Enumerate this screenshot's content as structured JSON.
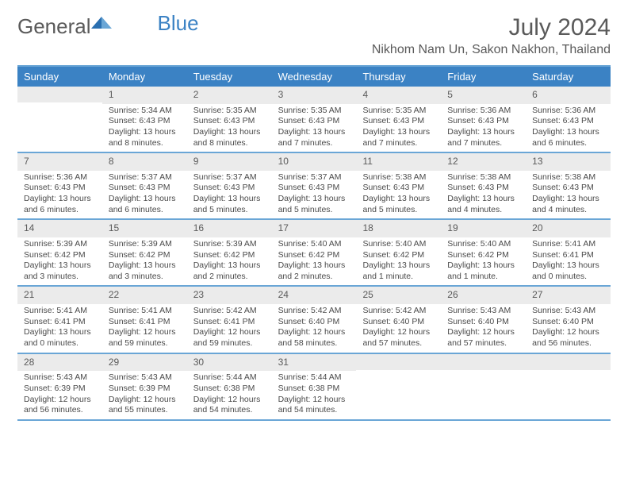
{
  "brand": {
    "word1": "General",
    "word2": "Blue"
  },
  "month_title": "July 2024",
  "location": "Nikhom Nam Un, Sakon Nakhon, Thailand",
  "colors": {
    "header_bg": "#3b82c4",
    "header_rule": "#6aa6d6",
    "daynum_bg": "#ebebeb",
    "text": "#4a4a4a"
  },
  "weekdays": [
    "Sunday",
    "Monday",
    "Tuesday",
    "Wednesday",
    "Thursday",
    "Friday",
    "Saturday"
  ],
  "weeks": [
    [
      {},
      {
        "n": "1",
        "sr": "5:34 AM",
        "ss": "6:43 PM",
        "dl": "13 hours and 8 minutes."
      },
      {
        "n": "2",
        "sr": "5:35 AM",
        "ss": "6:43 PM",
        "dl": "13 hours and 8 minutes."
      },
      {
        "n": "3",
        "sr": "5:35 AM",
        "ss": "6:43 PM",
        "dl": "13 hours and 7 minutes."
      },
      {
        "n": "4",
        "sr": "5:35 AM",
        "ss": "6:43 PM",
        "dl": "13 hours and 7 minutes."
      },
      {
        "n": "5",
        "sr": "5:36 AM",
        "ss": "6:43 PM",
        "dl": "13 hours and 7 minutes."
      },
      {
        "n": "6",
        "sr": "5:36 AM",
        "ss": "6:43 PM",
        "dl": "13 hours and 6 minutes."
      }
    ],
    [
      {
        "n": "7",
        "sr": "5:36 AM",
        "ss": "6:43 PM",
        "dl": "13 hours and 6 minutes."
      },
      {
        "n": "8",
        "sr": "5:37 AM",
        "ss": "6:43 PM",
        "dl": "13 hours and 6 minutes."
      },
      {
        "n": "9",
        "sr": "5:37 AM",
        "ss": "6:43 PM",
        "dl": "13 hours and 5 minutes."
      },
      {
        "n": "10",
        "sr": "5:37 AM",
        "ss": "6:43 PM",
        "dl": "13 hours and 5 minutes."
      },
      {
        "n": "11",
        "sr": "5:38 AM",
        "ss": "6:43 PM",
        "dl": "13 hours and 5 minutes."
      },
      {
        "n": "12",
        "sr": "5:38 AM",
        "ss": "6:43 PM",
        "dl": "13 hours and 4 minutes."
      },
      {
        "n": "13",
        "sr": "5:38 AM",
        "ss": "6:43 PM",
        "dl": "13 hours and 4 minutes."
      }
    ],
    [
      {
        "n": "14",
        "sr": "5:39 AM",
        "ss": "6:42 PM",
        "dl": "13 hours and 3 minutes."
      },
      {
        "n": "15",
        "sr": "5:39 AM",
        "ss": "6:42 PM",
        "dl": "13 hours and 3 minutes."
      },
      {
        "n": "16",
        "sr": "5:39 AM",
        "ss": "6:42 PM",
        "dl": "13 hours and 2 minutes."
      },
      {
        "n": "17",
        "sr": "5:40 AM",
        "ss": "6:42 PM",
        "dl": "13 hours and 2 minutes."
      },
      {
        "n": "18",
        "sr": "5:40 AM",
        "ss": "6:42 PM",
        "dl": "13 hours and 1 minute."
      },
      {
        "n": "19",
        "sr": "5:40 AM",
        "ss": "6:42 PM",
        "dl": "13 hours and 1 minute."
      },
      {
        "n": "20",
        "sr": "5:41 AM",
        "ss": "6:41 PM",
        "dl": "13 hours and 0 minutes."
      }
    ],
    [
      {
        "n": "21",
        "sr": "5:41 AM",
        "ss": "6:41 PM",
        "dl": "13 hours and 0 minutes."
      },
      {
        "n": "22",
        "sr": "5:41 AM",
        "ss": "6:41 PM",
        "dl": "12 hours and 59 minutes."
      },
      {
        "n": "23",
        "sr": "5:42 AM",
        "ss": "6:41 PM",
        "dl": "12 hours and 59 minutes."
      },
      {
        "n": "24",
        "sr": "5:42 AM",
        "ss": "6:40 PM",
        "dl": "12 hours and 58 minutes."
      },
      {
        "n": "25",
        "sr": "5:42 AM",
        "ss": "6:40 PM",
        "dl": "12 hours and 57 minutes."
      },
      {
        "n": "26",
        "sr": "5:43 AM",
        "ss": "6:40 PM",
        "dl": "12 hours and 57 minutes."
      },
      {
        "n": "27",
        "sr": "5:43 AM",
        "ss": "6:40 PM",
        "dl": "12 hours and 56 minutes."
      }
    ],
    [
      {
        "n": "28",
        "sr": "5:43 AM",
        "ss": "6:39 PM",
        "dl": "12 hours and 56 minutes."
      },
      {
        "n": "29",
        "sr": "5:43 AM",
        "ss": "6:39 PM",
        "dl": "12 hours and 55 minutes."
      },
      {
        "n": "30",
        "sr": "5:44 AM",
        "ss": "6:38 PM",
        "dl": "12 hours and 54 minutes."
      },
      {
        "n": "31",
        "sr": "5:44 AM",
        "ss": "6:38 PM",
        "dl": "12 hours and 54 minutes."
      },
      {},
      {},
      {}
    ]
  ],
  "labels": {
    "sunrise": "Sunrise: ",
    "sunset": "Sunset: ",
    "daylight": "Daylight: "
  }
}
